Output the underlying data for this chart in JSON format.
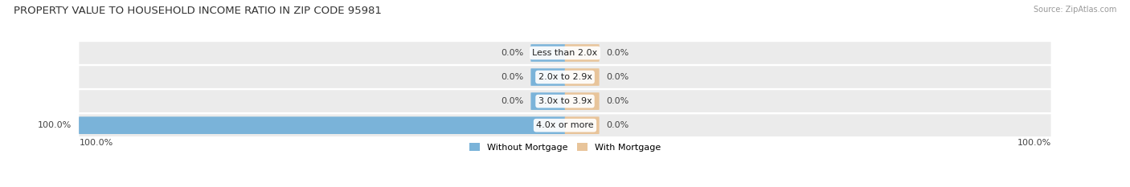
{
  "title": "PROPERTY VALUE TO HOUSEHOLD INCOME RATIO IN ZIP CODE 95981",
  "source": "Source: ZipAtlas.com",
  "categories": [
    "Less than 2.0x",
    "2.0x to 2.9x",
    "3.0x to 3.9x",
    "4.0x or more"
  ],
  "without_mortgage": [
    0.0,
    0.0,
    0.0,
    100.0
  ],
  "with_mortgage": [
    0.0,
    0.0,
    0.0,
    0.0
  ],
  "color_without": "#7ab3d9",
  "color_with": "#e8c49a",
  "row_bg_color": "#ebebeb",
  "title_fontsize": 9.5,
  "label_fontsize": 8,
  "source_fontsize": 7,
  "legend_labels": [
    "Without Mortgage",
    "With Mortgage"
  ],
  "axis_label_left": "100.0%",
  "axis_label_right": "100.0%",
  "background_color": "#ffffff",
  "min_bar_pct": 7.0
}
